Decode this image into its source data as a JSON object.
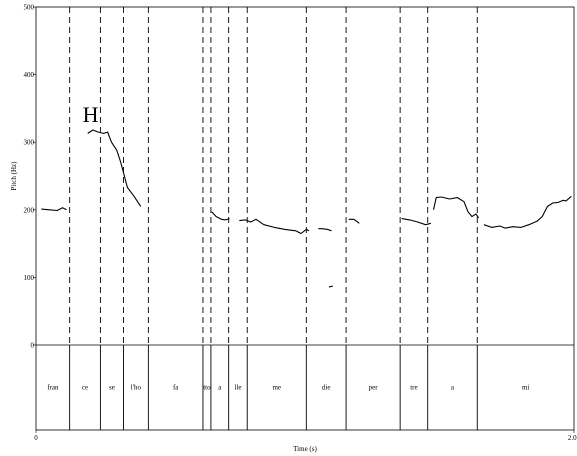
{
  "chart_data": {
    "type": "line",
    "xlabel": "Time (s)",
    "ylabel": "Pitch (Hz)",
    "xlim": [
      0,
      2.03
    ],
    "ylim": [
      0,
      500
    ],
    "x_ticks": [
      {
        "value": 0,
        "label": "0"
      },
      {
        "value": 2.03,
        "label": "2.03"
      }
    ],
    "y_ticks": [
      {
        "value": 0,
        "label": "0"
      },
      {
        "value": 100,
        "label": "100"
      },
      {
        "value": 200,
        "label": "200"
      },
      {
        "value": 300,
        "label": "300"
      },
      {
        "value": 400,
        "label": "400"
      },
      {
        "value": 500,
        "label": "500"
      }
    ],
    "annotations": [
      {
        "text": "H",
        "x": 0.206,
        "y": 330
      }
    ],
    "boundaries": [
      0.127,
      0.243,
      0.33,
      0.424,
      0.63,
      0.66,
      0.727,
      0.797,
      1.02,
      1.17,
      1.374,
      1.478,
      1.665
    ],
    "segments": [
      {
        "label": "fran",
        "start": 0,
        "end": 0.127
      },
      {
        "label": "ce",
        "start": 0.127,
        "end": 0.243
      },
      {
        "label": "se",
        "start": 0.243,
        "end": 0.33
      },
      {
        "label": "l'ho",
        "start": 0.33,
        "end": 0.424
      },
      {
        "label": "fa",
        "start": 0.424,
        "end": 0.63
      },
      {
        "label": "tto",
        "start": 0.63,
        "end": 0.66
      },
      {
        "label": "a",
        "start": 0.66,
        "end": 0.727
      },
      {
        "label": "lle",
        "start": 0.727,
        "end": 0.797
      },
      {
        "label": "me",
        "start": 0.797,
        "end": 1.02
      },
      {
        "label": "die",
        "start": 1.02,
        "end": 1.17
      },
      {
        "label": "per",
        "start": 1.17,
        "end": 1.374
      },
      {
        "label": "tre",
        "start": 1.374,
        "end": 1.478
      },
      {
        "label": "a",
        "start": 1.478,
        "end": 1.665
      },
      {
        "label": "mi",
        "start": 1.665,
        "end": 2.03
      }
    ],
    "series": [
      {
        "points": [
          [
            0.02,
            201
          ],
          [
            0.05,
            200
          ],
          [
            0.08,
            199
          ],
          [
            0.1,
            203
          ],
          [
            0.115,
            200
          ]
        ]
      },
      {
        "points": [
          [
            0.195,
            313
          ],
          [
            0.215,
            318
          ],
          [
            0.235,
            315
          ],
          [
            0.255,
            313
          ],
          [
            0.27,
            315
          ],
          [
            0.285,
            300
          ],
          [
            0.305,
            288
          ],
          [
            0.32,
            270
          ],
          [
            0.345,
            233
          ],
          [
            0.37,
            220
          ],
          [
            0.395,
            205
          ]
        ]
      },
      {
        "points": [
          [
            0.663,
            197
          ],
          [
            0.68,
            190
          ],
          [
            0.7,
            186
          ],
          [
            0.715,
            185
          ],
          [
            0.73,
            187
          ]
        ]
      },
      {
        "points": [
          [
            0.767,
            184
          ],
          [
            0.79,
            185
          ],
          [
            0.81,
            182
          ],
          [
            0.83,
            186
          ],
          [
            0.86,
            178
          ],
          [
            0.9,
            174
          ],
          [
            0.94,
            171
          ],
          [
            0.98,
            169
          ],
          [
            1.0,
            165
          ],
          [
            1.02,
            171
          ],
          [
            1.03,
            169
          ]
        ]
      },
      {
        "points": [
          [
            1.065,
            172
          ],
          [
            1.08,
            172
          ],
          [
            1.1,
            171
          ],
          [
            1.115,
            169
          ]
        ]
      },
      {
        "points": [
          [
            1.105,
            86
          ],
          [
            1.12,
            87
          ]
        ]
      },
      {
        "points": [
          [
            1.18,
            186
          ],
          [
            1.2,
            186
          ],
          [
            1.22,
            180
          ]
        ]
      },
      {
        "points": [
          [
            1.38,
            187
          ],
          [
            1.41,
            185
          ],
          [
            1.44,
            182
          ],
          [
            1.47,
            178
          ],
          [
            1.49,
            180
          ]
        ]
      },
      {
        "points": [
          [
            1.5,
            200
          ],
          [
            1.51,
            218
          ],
          [
            1.53,
            219
          ],
          [
            1.56,
            216
          ],
          [
            1.59,
            218
          ],
          [
            1.615,
            212
          ],
          [
            1.63,
            197
          ],
          [
            1.645,
            190
          ],
          [
            1.66,
            194
          ],
          [
            1.67,
            188
          ]
        ]
      },
      {
        "points": [
          [
            1.69,
            178
          ],
          [
            1.72,
            174
          ],
          [
            1.75,
            176
          ],
          [
            1.77,
            173
          ],
          [
            1.8,
            175
          ],
          [
            1.83,
            174
          ],
          [
            1.86,
            178
          ],
          [
            1.89,
            183
          ],
          [
            1.91,
            190
          ],
          [
            1.93,
            205
          ],
          [
            1.95,
            210
          ],
          [
            1.97,
            211
          ],
          [
            1.99,
            214
          ],
          [
            2.0,
            213
          ],
          [
            2.02,
            220
          ]
        ]
      }
    ]
  }
}
